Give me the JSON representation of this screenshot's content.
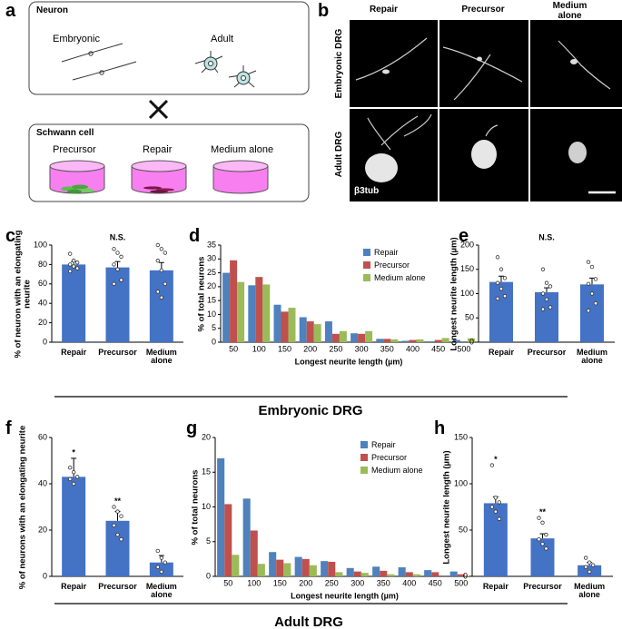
{
  "panel_labels": [
    "a",
    "b",
    "c",
    "d",
    "e",
    "f",
    "g",
    "h"
  ],
  "diagram": {
    "neuron": {
      "title": "Neuron",
      "types": [
        "Embryonic",
        "Adult"
      ]
    },
    "schwann_cell": {
      "title": "Schwann cell",
      "conditions": [
        "Precursor",
        "Repair",
        "Medium alone"
      ]
    }
  },
  "micrographs": {
    "columns": [
      "Repair",
      "Precursor",
      "Medium alone"
    ],
    "rows": [
      "Embryonic DRG",
      "Adult DRG"
    ],
    "stain": "β3tub"
  },
  "group_labels": [
    "Embryonic DRG",
    "Adult DRG"
  ],
  "chart_data": [
    {
      "type": "bar",
      "categories": [
        "Repair",
        "Precursor",
        "Medium alone"
      ],
      "values": [
        80,
        77,
        74
      ],
      "errors": [
        3,
        6,
        8
      ],
      "points": [
        [
          91,
          84,
          82,
          80,
          78,
          76,
          73
        ],
        [
          96,
          92,
          88,
          80,
          75,
          64,
          60
        ],
        [
          100,
          96,
          92,
          84,
          74,
          60,
          52,
          46
        ]
      ],
      "color": "#4472c4",
      "ylabel": "% of neuron with an elongating neurite",
      "ylim": [
        0,
        100
      ],
      "yticks": [
        0,
        20,
        40,
        60,
        80,
        100
      ],
      "annotation": "N.S."
    },
    {
      "type": "grouped_bar",
      "categories": [
        50,
        100,
        150,
        200,
        250,
        300,
        350,
        400,
        450,
        500
      ],
      "series": [
        {
          "name": "Repair",
          "color": "#4f81bd",
          "values": [
            25,
            20.5,
            13.5,
            9,
            7.5,
            3.2,
            1.2,
            0.5,
            0.3,
            0.8
          ]
        },
        {
          "name": "Precursor",
          "color": "#c0504d",
          "values": [
            29.5,
            23.5,
            11,
            7.5,
            3,
            3,
            1.2,
            0.8,
            0.8,
            0
          ]
        },
        {
          "name": "Medium alone",
          "color": "#9bbb59",
          "values": [
            21.7,
            20.8,
            12.4,
            6.5,
            4,
            4,
            1,
            1,
            1.5,
            1.4
          ]
        }
      ],
      "xlabel": "Longest neurite length (µm)",
      "ylabel": "% of total neurons",
      "ylim": [
        0,
        35
      ],
      "yticks": [
        0,
        5,
        10,
        15,
        20,
        25,
        30,
        35
      ],
      "legend": "upper right"
    },
    {
      "type": "bar",
      "categories": [
        "Repair",
        "Precursor",
        "Medium alone"
      ],
      "values": [
        124,
        103,
        119
      ],
      "errors": [
        12,
        9,
        13
      ],
      "points": [
        [
          175,
          150,
          132,
          122,
          110,
          95,
          90
        ],
        [
          150,
          122,
          115,
          100,
          88,
          72,
          68
        ],
        [
          165,
          155,
          130,
          120,
          100,
          80,
          65
        ]
      ],
      "color": "#4472c4",
      "ylabel": "Longest neurite length (µm)",
      "ylim": [
        0,
        200
      ],
      "yticks": [
        0,
        50,
        100,
        150,
        200
      ],
      "annotation": "N.S."
    },
    {
      "type": "bar",
      "categories": [
        "Repair",
        "Precursor",
        "Medium alone"
      ],
      "values": [
        43,
        24,
        6
      ],
      "errors": [
        8,
        4,
        3
      ],
      "points": [
        [
          47,
          45,
          43,
          42,
          40
        ],
        [
          30,
          28,
          26,
          22,
          18,
          16
        ],
        [
          11,
          8,
          6,
          4,
          2
        ]
      ],
      "color": "#4472c4",
      "ylabel": "% of neurons with an elongating neurite",
      "ylim": [
        0,
        60
      ],
      "yticks": [
        0,
        20,
        40,
        60
      ],
      "significance": [
        "*",
        "**",
        null
      ]
    },
    {
      "type": "grouped_bar",
      "categories": [
        50,
        100,
        150,
        200,
        250,
        300,
        350,
        400,
        450,
        500
      ],
      "series": [
        {
          "name": "Repair",
          "color": "#4f81bd",
          "values": [
            17,
            11.2,
            3.5,
            2.8,
            2.2,
            1.2,
            1.4,
            1.3,
            0.9,
            0.7
          ]
        },
        {
          "name": "Precursor",
          "color": "#c0504d",
          "values": [
            10.4,
            6.6,
            2.4,
            2.5,
            2.1,
            0.7,
            0.8,
            0.6,
            0.6,
            0.3
          ]
        },
        {
          "name": "Medium alone",
          "color": "#9bbb59",
          "values": [
            3.1,
            1.8,
            1.9,
            1.6,
            0.6,
            0.5,
            0.3,
            0.3,
            0,
            0.1
          ]
        }
      ],
      "xlabel": "Longest neurite length (µm)",
      "ylabel": "% of total neurons",
      "ylim": [
        0,
        20
      ],
      "yticks": [
        0,
        5,
        10,
        15,
        20
      ],
      "legend": "upper right"
    },
    {
      "type": "bar",
      "categories": [
        "Repair",
        "Precursor",
        "Medium alone"
      ],
      "values": [
        79,
        41,
        12
      ],
      "errors": [
        7,
        5,
        3
      ],
      "points": [
        [
          120,
          85,
          80,
          75,
          70,
          62
        ],
        [
          63,
          58,
          45,
          40,
          35,
          30
        ],
        [
          20,
          15,
          12,
          10,
          5
        ]
      ],
      "color": "#4472c4",
      "ylabel": "Longest neurite length (µm)",
      "ylim": [
        0,
        150
      ],
      "yticks": [
        0,
        50,
        100,
        150
      ],
      "significance": [
        "*",
        "**",
        null
      ]
    }
  ]
}
